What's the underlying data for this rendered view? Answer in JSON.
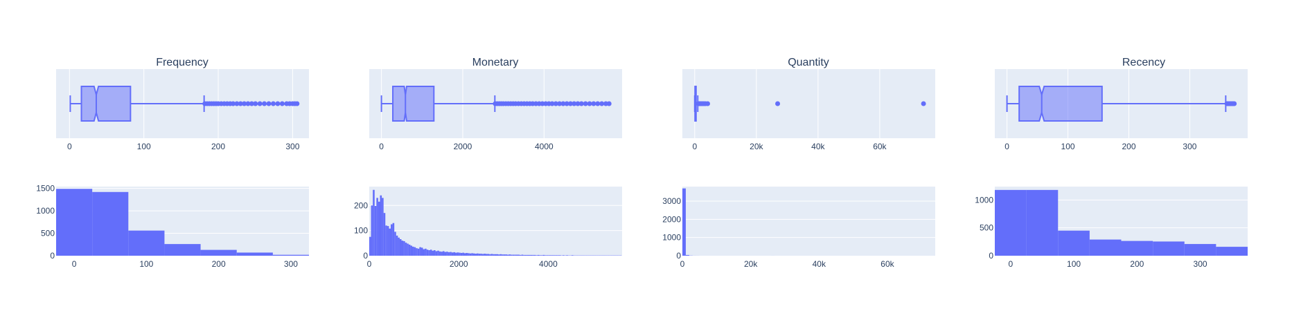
{
  "colors": {
    "plot_bg": "#e5ecf6",
    "grid": "#ffffff",
    "trace": "#636efa",
    "box_fill": "rgba(99,110,250,0.5)",
    "text": "#2a3f5f"
  },
  "chart_data": [
    {
      "type": "box",
      "title": "Frequency",
      "xlim": [
        -18,
        322
      ],
      "ticks": [
        {
          "v": 0,
          "label": "0"
        },
        {
          "v": 100,
          "label": "100"
        },
        {
          "v": 200,
          "label": "200"
        },
        {
          "v": 300,
          "label": "300"
        }
      ],
      "stats": {
        "lower_fence": 1,
        "q1": 16,
        "median": 36,
        "q3": 82,
        "upper_fence": 181,
        "notch_low": 33,
        "notch_high": 39
      },
      "outliers": [
        182,
        185,
        188,
        191,
        194,
        197,
        200,
        204,
        208,
        212,
        216,
        220,
        225,
        230,
        235,
        240,
        245,
        250,
        256,
        262,
        268,
        274,
        280,
        286,
        292,
        296,
        300,
        303,
        306
      ]
    },
    {
      "type": "box",
      "title": "Monetary",
      "xlim": [
        -300,
        5920
      ],
      "ticks": [
        {
          "v": 0,
          "label": "0"
        },
        {
          "v": 2000,
          "label": "2000"
        },
        {
          "v": 4000,
          "label": "4000"
        }
      ],
      "stats": {
        "lower_fence": 0,
        "q1": 280,
        "median": 590,
        "q3": 1290,
        "upper_fence": 2790,
        "notch_low": 560,
        "notch_high": 620
      },
      "outliers": [
        2800,
        2850,
        2900,
        2950,
        3000,
        3060,
        3120,
        3180,
        3240,
        3300,
        3370,
        3440,
        3510,
        3580,
        3650,
        3720,
        3800,
        3880,
        3960,
        4040,
        4120,
        4200,
        4290,
        4380,
        4470,
        4560,
        4650,
        4740,
        4830,
        4920,
        5020,
        5120,
        5220,
        5320,
        5420,
        5520,
        5600
      ]
    },
    {
      "type": "box",
      "title": "Quantity",
      "xlim": [
        -4000,
        78000
      ],
      "ticks": [
        {
          "v": 0,
          "label": "0"
        },
        {
          "v": 20000,
          "label": "20k"
        },
        {
          "v": 40000,
          "label": "40k"
        },
        {
          "v": 60000,
          "label": "60k"
        }
      ],
      "stats": {
        "lower_fence": 0,
        "q1": 100,
        "median": 200,
        "q3": 450,
        "upper_fence": 1000,
        "notch_low": 190,
        "notch_high": 210
      },
      "outliers": [
        1200,
        1500,
        1800,
        2200,
        2600,
        3000,
        3500,
        4200,
        26900,
        74200
      ]
    },
    {
      "type": "box",
      "title": "Recency",
      "xlim": [
        -20,
        395
      ],
      "ticks": [
        {
          "v": 0,
          "label": "0"
        },
        {
          "v": 100,
          "label": "100"
        },
        {
          "v": 200,
          "label": "200"
        },
        {
          "v": 300,
          "label": "300"
        }
      ],
      "stats": {
        "lower_fence": 0,
        "q1": 20,
        "median": 57,
        "q3": 156,
        "upper_fence": 359,
        "notch_low": 53,
        "notch_high": 61
      },
      "outliers": [
        361,
        363,
        365,
        367,
        369,
        371,
        373
      ]
    },
    {
      "type": "histogram",
      "title": "",
      "xlim": [
        -25,
        325
      ],
      "ylim": [
        0,
        1540
      ],
      "xticks": [
        {
          "v": 0,
          "label": "0"
        },
        {
          "v": 100,
          "label": "100"
        },
        {
          "v": 200,
          "label": "200"
        },
        {
          "v": 300,
          "label": "300"
        }
      ],
      "yticks": [
        {
          "v": 0,
          "label": "0"
        },
        {
          "v": 500,
          "label": "500"
        },
        {
          "v": 1000,
          "label": "1000"
        },
        {
          "v": 1500,
          "label": "1500"
        }
      ],
      "bin_start": -25,
      "bin_width": 50,
      "counts": [
        1490,
        1420,
        560,
        260,
        130,
        70,
        20
      ]
    },
    {
      "type": "histogram",
      "title": "",
      "xlim": [
        0,
        5650
      ],
      "ylim": [
        0,
        275
      ],
      "xticks": [
        {
          "v": 0,
          "label": "0"
        },
        {
          "v": 2000,
          "label": "2000"
        },
        {
          "v": 4000,
          "label": "4000"
        }
      ],
      "yticks": [
        {
          "v": 0,
          "label": "0"
        },
        {
          "v": 100,
          "label": "100"
        },
        {
          "v": 200,
          "label": "200"
        }
      ],
      "bin_start": 0,
      "bin_width": 40,
      "counts": [
        75,
        200,
        262,
        198,
        230,
        215,
        240,
        230,
        170,
        120,
        118,
        108,
        125,
        130,
        95,
        80,
        72,
        66,
        60,
        58,
        52,
        48,
        44,
        40,
        36,
        34,
        30,
        28,
        34,
        32,
        26,
        28,
        24,
        22,
        24,
        20,
        22,
        18,
        20,
        17,
        16,
        18,
        15,
        16,
        14,
        15,
        13,
        14,
        12,
        13,
        12,
        11,
        12,
        10,
        11,
        10,
        9,
        10,
        9,
        8,
        9,
        8,
        8,
        7,
        8,
        7,
        7,
        6,
        7,
        6,
        6,
        6,
        5,
        6,
        5,
        5,
        5,
        4,
        5,
        4,
        4,
        4,
        4,
        4,
        3,
        4,
        3,
        3,
        3,
        3,
        3,
        3,
        3,
        2,
        3,
        2,
        2,
        3,
        2,
        2,
        2,
        2,
        2,
        2,
        2,
        2,
        2,
        1,
        2,
        1,
        2,
        1,
        1,
        2,
        1,
        1,
        1,
        1,
        1,
        1,
        1,
        1,
        1,
        1,
        1,
        1,
        1,
        1,
        1,
        1,
        1,
        1,
        1,
        1,
        1,
        1,
        1,
        1,
        1,
        1,
        1
      ]
    },
    {
      "type": "histogram",
      "title": "",
      "xlim": [
        0,
        74000
      ],
      "ylim": [
        0,
        3800
      ],
      "xticks": [
        {
          "v": 0,
          "label": "0"
        },
        {
          "v": 20000,
          "label": "20k"
        },
        {
          "v": 40000,
          "label": "40k"
        },
        {
          "v": 60000,
          "label": "60k"
        }
      ],
      "yticks": [
        {
          "v": 0,
          "label": "0"
        },
        {
          "v": 1000,
          "label": "1000"
        },
        {
          "v": 2000,
          "label": "2000"
        },
        {
          "v": 3000,
          "label": "3000"
        }
      ],
      "bin_start": 0,
      "bin_width": 1000,
      "counts": [
        3700,
        40,
        10,
        3,
        2,
        0,
        0,
        0,
        0,
        0,
        0,
        0,
        0,
        0,
        0,
        0,
        0,
        0,
        0,
        0,
        0,
        0,
        0,
        0,
        0,
        0,
        1,
        0,
        0,
        0,
        0,
        0,
        0,
        0,
        0,
        0,
        0,
        0,
        0,
        0,
        0,
        0,
        0,
        0,
        0,
        0,
        0,
        0,
        0,
        0,
        0,
        0,
        0,
        0,
        0,
        0,
        0,
        0,
        0,
        0,
        0,
        0,
        0,
        0,
        0,
        0,
        0,
        0,
        0,
        0,
        0,
        0,
        0,
        0,
        1
      ]
    },
    {
      "type": "histogram",
      "title": "",
      "xlim": [
        -25,
        375
      ],
      "ylim": [
        0,
        1240
      ],
      "xticks": [
        {
          "v": 0,
          "label": "0"
        },
        {
          "v": 100,
          "label": "100"
        },
        {
          "v": 200,
          "label": "200"
        },
        {
          "v": 300,
          "label": "300"
        }
      ],
      "yticks": [
        {
          "v": 0,
          "label": "0"
        },
        {
          "v": 500,
          "label": "500"
        },
        {
          "v": 1000,
          "label": "1000"
        }
      ],
      "bin_start": -25,
      "bin_width": 50,
      "counts": [
        1180,
        1180,
        450,
        290,
        265,
        255,
        210,
        160
      ]
    }
  ]
}
